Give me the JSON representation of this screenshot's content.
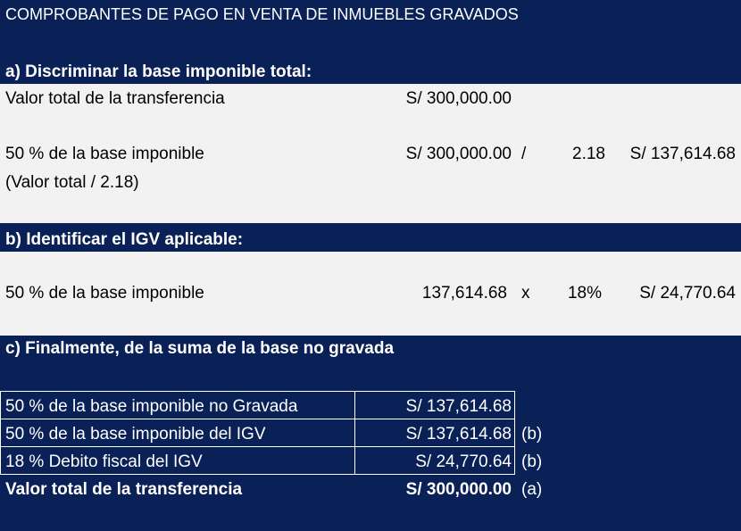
{
  "title": "COMPROBANTES DE PAGO EN VENTA DE INMUEBLES GRAVADOS",
  "section_a": {
    "header": "a) Discriminar la base imponible total:",
    "row1_label": "Valor total de la transferencia",
    "row1_value": "S/ 300,000.00",
    "row2_label": "50 % de la base imponible",
    "row2_sublabel": "(Valor total / 2.18)",
    "row2_value": "S/ 300,000.00",
    "row2_op": "/",
    "row2_divisor": "2.18",
    "row2_result": "S/ 137,614.68"
  },
  "section_b": {
    "header": "b) Identificar el IGV aplicable:",
    "row_label": "50 % de la base imponible",
    "row_value": "137,614.68",
    "row_op": "x",
    "row_rate": "18%",
    "row_result": "S/ 24,770.64"
  },
  "section_c": {
    "header": "c) Finalmente, de la suma de la base no gravada",
    "rows": [
      {
        "label": "50 % de la base imponible no Gravada",
        "value": "S/ 137,614.68",
        "tag": ""
      },
      {
        "label": "50 % de la base imponible del IGV",
        "value": "S/ 137,614.68",
        "tag": "(b)"
      },
      {
        "label": "18 % Debito fiscal del IGV",
        "value": "S/ 24,770.64",
        "tag": "(b)"
      }
    ],
    "total_label": "Valor total de la transferencia",
    "total_value": "S/ 300,000.00",
    "total_tag": "(a)"
  }
}
